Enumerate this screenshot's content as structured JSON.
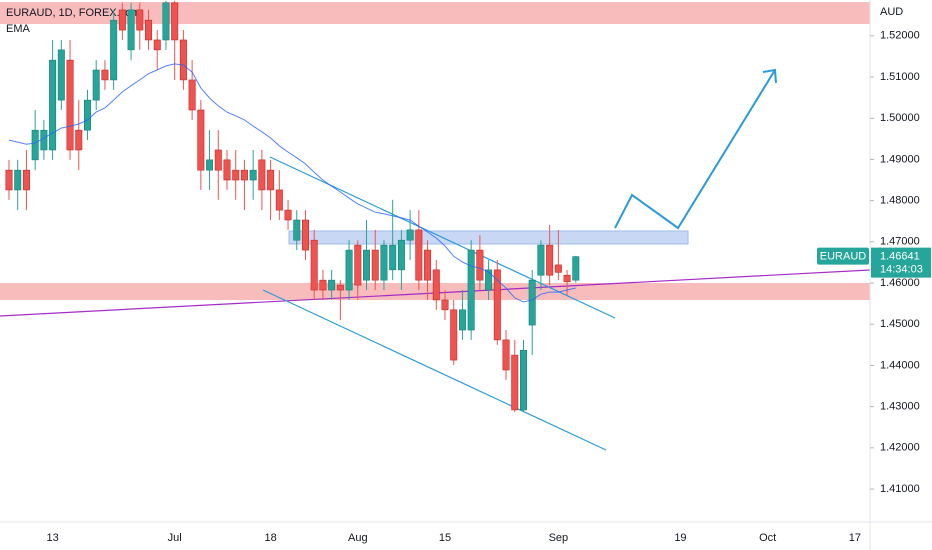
{
  "chart_data": {
    "type": "candlestick",
    "title": "EURAUD, 1D, FOREX.com",
    "indicator": "EMA",
    "y_axis_label": "AUD",
    "categories": [
      null,
      null,
      null,
      null,
      null,
      "13",
      null,
      null,
      null,
      null,
      null,
      null,
      null,
      null,
      null,
      null,
      null,
      null,
      null,
      "Jul",
      null,
      null,
      null,
      null,
      null,
      null,
      null,
      null,
      null,
      null,
      "18",
      null,
      null,
      null,
      null,
      null,
      null,
      null,
      null,
      null,
      "Aug",
      null,
      null,
      null,
      null,
      null,
      null,
      null,
      null,
      null,
      "15",
      null,
      null,
      null,
      null,
      null,
      null,
      null,
      null,
      null,
      null,
      null,
      null,
      "Sep",
      null,
      null,
      null,
      null,
      null,
      null,
      null,
      null,
      null,
      null,
      null,
      null,
      null,
      "19",
      null,
      null,
      null,
      null,
      null,
      null,
      null,
      null,
      null,
      "Oct",
      null,
      null,
      null,
      null,
      null,
      null,
      null,
      null,
      null,
      "17",
      null,
      null
    ],
    "open": [
      1.4874,
      1.4826,
      1.4874,
      1.4899,
      1.4923,
      1.4923,
      1.5044,
      1.5141,
      1.4971,
      1.4971,
      1.5044,
      1.5117,
      1.5093,
      1.5263,
      1.5166,
      1.5263,
      1.5238,
      1.519,
      1.519,
      1.528,
      1.519,
      1.5093,
      1.502,
      1.4874,
      1.4923,
      1.4899,
      1.4874,
      1.4874,
      1.485,
      1.4899,
      1.4874,
      1.4826,
      1.4777,
      1.4704,
      1.4753,
      1.4704,
      1.4607,
      1.4583,
      1.4595,
      1.4583,
      1.4692,
      1.4607,
      1.468,
      1.4607,
      1.4632,
      1.4632,
      1.4704,
      1.4729,
      1.468,
      1.4632,
      1.4559,
      1.4535,
      1.4486,
      1.4486,
      1.468,
      1.4583,
      1.4632,
      1.4462,
      1.4425,
      1.4292,
      1.4498,
      1.4619,
      1.4692,
      1.4644,
      1.4619,
      1.4607,
      null,
      null,
      null,
      null,
      null,
      null,
      null,
      null,
      null,
      null,
      null,
      null,
      null,
      null,
      null,
      null,
      null,
      null,
      null,
      null,
      null,
      null,
      null,
      null,
      null,
      null,
      null,
      null,
      null,
      null,
      null,
      null,
      null,
      null
    ],
    "high": [
      1.4899,
      1.4899,
      1.4923,
      1.502,
      1.4996,
      1.519,
      1.519,
      1.519,
      1.5044,
      1.5069,
      1.5141,
      1.5141,
      1.5263,
      1.528,
      1.528,
      1.528,
      1.5263,
      1.5214,
      1.5285,
      1.5285,
      1.5214,
      1.5141,
      1.5044,
      1.4971,
      1.4971,
      1.4923,
      1.4923,
      1.4899,
      1.4923,
      1.4923,
      1.4899,
      1.4874,
      1.4802,
      1.4777,
      1.4777,
      1.4729,
      1.4632,
      1.4632,
      1.4607,
      1.4704,
      1.4704,
      1.4753,
      1.4729,
      1.4704,
      1.4802,
      1.4729,
      1.4777,
      1.4777,
      1.4704,
      1.4656,
      1.4583,
      1.4559,
      1.4583,
      1.4704,
      1.4716,
      1.4656,
      1.4656,
      1.4486,
      1.4462,
      1.4462,
      1.4632,
      1.4704,
      1.4741,
      1.4729,
      1.4632,
      1.4666,
      null,
      null,
      null,
      null,
      null,
      null,
      null,
      null,
      null,
      null,
      null,
      null,
      null,
      null,
      null,
      null,
      null,
      null,
      null,
      null,
      null,
      null,
      null,
      null,
      null,
      null,
      null,
      null,
      null,
      null,
      null,
      null,
      null,
      null
    ],
    "low": [
      1.4802,
      1.4777,
      1.4777,
      1.4874,
      1.4899,
      1.4899,
      1.502,
      1.4899,
      1.4874,
      1.4947,
      1.502,
      1.5069,
      1.5069,
      1.519,
      1.5141,
      1.5166,
      1.5166,
      1.5117,
      1.5166,
      1.5093,
      1.5069,
      1.4996,
      1.4826,
      1.4826,
      1.4802,
      1.4826,
      1.4802,
      1.4777,
      1.4802,
      1.4777,
      1.4753,
      1.4753,
      1.4729,
      1.468,
      1.4656,
      1.4559,
      1.4559,
      1.4559,
      1.451,
      1.4559,
      1.4559,
      1.4583,
      1.4583,
      1.4583,
      1.4607,
      1.4583,
      1.4656,
      1.4583,
      1.4559,
      1.4535,
      1.451,
      1.4401,
      1.4462,
      1.4462,
      1.4583,
      1.4559,
      1.445,
      1.4365,
      1.4287,
      1.4287,
      1.4425,
      1.4583,
      1.4595,
      1.4607,
      1.4571,
      1.4601,
      null,
      null,
      null,
      null,
      null,
      null,
      null,
      null,
      null,
      null,
      null,
      null,
      null,
      null,
      null,
      null,
      null,
      null,
      null,
      null,
      null,
      null,
      null,
      null,
      null,
      null,
      null,
      null,
      null,
      null,
      null,
      null,
      null,
      null
    ],
    "close": [
      1.4826,
      1.4874,
      1.4826,
      1.4971,
      1.4971,
      1.5141,
      1.5166,
      1.4923,
      1.4923,
      1.5044,
      1.5117,
      1.5093,
      1.5238,
      1.5214,
      1.5263,
      1.5214,
      1.519,
      1.5166,
      1.528,
      1.519,
      1.5093,
      1.502,
      1.4874,
      1.4899,
      1.4874,
      1.485,
      1.485,
      1.485,
      1.4874,
      1.4826,
      1.4826,
      1.4777,
      1.4753,
      1.4753,
      1.468,
      1.4583,
      1.4583,
      1.4607,
      1.4583,
      1.468,
      1.4595,
      1.468,
      1.4607,
      1.4692,
      1.4692,
      1.4704,
      1.4729,
      1.4607,
      1.4607,
      1.4559,
      1.4535,
      1.4413,
      1.4535,
      1.468,
      1.4607,
      1.4632,
      1.4462,
      1.4389,
      1.4292,
      1.4437,
      1.4607,
      1.4692,
      1.4619,
      1.4626,
      1.4603,
      1.46641,
      null,
      null,
      null,
      null,
      null,
      null,
      null,
      null,
      null,
      null,
      null,
      null,
      null,
      null,
      null,
      null,
      null,
      null,
      null,
      null,
      null,
      null,
      null,
      null,
      null,
      null,
      null,
      null,
      null,
      null,
      null,
      null,
      null,
      null
    ],
    "ema": [
      1.4947,
      1.4942,
      1.4937,
      1.494,
      1.4952,
      1.4964,
      1.4976,
      1.4981,
      1.4986,
      1.4996,
      1.5015,
      1.5025,
      1.5044,
      1.5064,
      1.5079,
      1.5093,
      1.5108,
      1.5117,
      1.5127,
      1.5132,
      1.5129,
      1.5112,
      1.5074,
      1.5049,
      1.503,
      1.5015,
      1.5006,
      1.4996,
      1.4981,
      1.4967,
      1.4952,
      1.4933,
      1.4918,
      1.4904,
      1.4889,
      1.4869,
      1.485,
      1.4835,
      1.4821,
      1.4806,
      1.4792,
      1.4782,
      1.4772,
      1.4768,
      1.4763,
      1.4758,
      1.4753,
      1.4738,
      1.4724,
      1.4709,
      1.469,
      1.4665,
      1.4651,
      1.4641,
      1.4636,
      1.4627,
      1.4607,
      1.4588,
      1.4564,
      1.4554,
      1.4559,
      1.4573,
      1.4578,
      1.4578,
      1.4583,
      1.4588,
      null,
      null,
      null,
      null,
      null,
      null,
      null,
      null,
      null,
      null,
      null,
      null,
      null,
      null,
      null,
      null,
      null,
      null,
      null,
      null,
      null,
      null,
      null,
      null,
      null,
      null,
      null,
      null,
      null,
      null,
      null,
      null,
      null,
      null
    ],
    "up_color": "#26a69a",
    "down_color": "#ef5350",
    "ema_color": "#2962ff",
    "last_price": {
      "symbol": "EURAUD",
      "value": 1.46641,
      "label": "1.46641",
      "countdown": "14:34:03",
      "color": "#26a69a"
    },
    "ylim": [
      1.402,
      1.5287
    ],
    "yticks": [
      {
        "value": 1.41,
        "label": "1.41000"
      },
      {
        "value": 1.42,
        "label": "1.42000"
      },
      {
        "value": 1.43,
        "label": "1.43000"
      },
      {
        "value": 1.44,
        "label": "1.44000"
      },
      {
        "value": 1.45,
        "label": "1.45000"
      },
      {
        "value": 1.46,
        "label": "1.46000"
      },
      {
        "value": 1.47,
        "label": "1.47000"
      },
      {
        "value": 1.48,
        "label": "1.48000"
      },
      {
        "value": 1.49,
        "label": "1.49000"
      },
      {
        "value": 1.5,
        "label": "1.50000"
      },
      {
        "value": 1.51,
        "label": "1.51000"
      },
      {
        "value": 1.52,
        "label": "1.52000"
      }
    ]
  }
}
